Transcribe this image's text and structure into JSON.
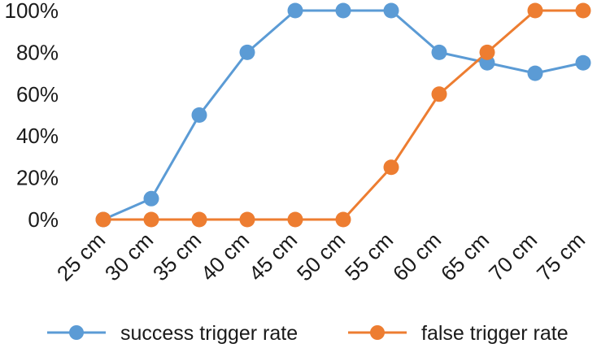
{
  "chart_data": {
    "type": "line",
    "categories": [
      "25 cm",
      "30 cm",
      "35 cm",
      "40 cm",
      "45 cm",
      "50 cm",
      "55 cm",
      "60 cm",
      "65 cm",
      "70 cm",
      "75 cm"
    ],
    "series": [
      {
        "name": "success trigger rate",
        "color": "#5b9bd5",
        "values": [
          0,
          10,
          50,
          80,
          100,
          100,
          100,
          80,
          75,
          70,
          75
        ]
      },
      {
        "name": "false trigger rate",
        "color": "#ed7d31",
        "values": [
          0,
          0,
          0,
          0,
          0,
          0,
          25,
          60,
          80,
          100,
          100
        ]
      }
    ],
    "y_ticks": [
      "0%",
      "20%",
      "40%",
      "60%",
      "80%",
      "100%"
    ],
    "ylim": [
      0,
      100
    ],
    "grid": false,
    "legend_position": "bottom"
  }
}
